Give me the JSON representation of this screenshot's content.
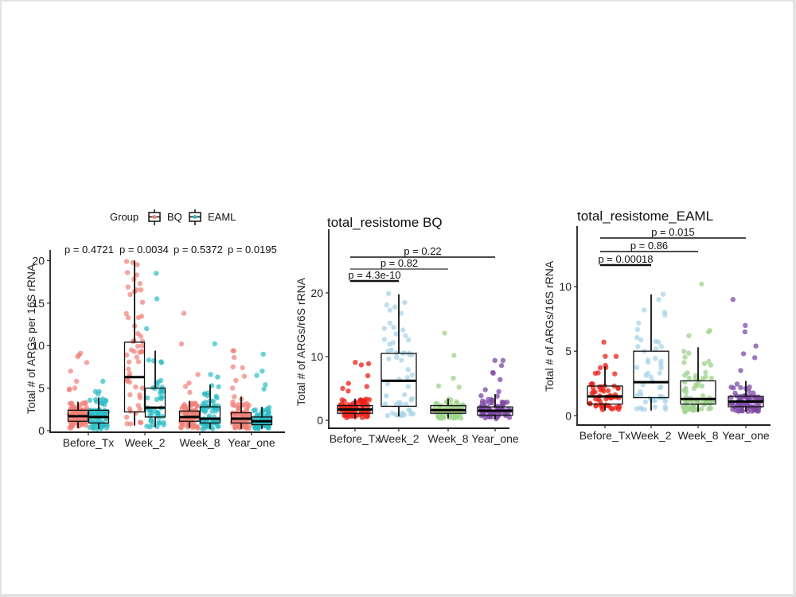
{
  "chart_data": [
    {
      "id": "left",
      "type": "box",
      "title": "",
      "xlabel": "",
      "ylabel": "Total # of ARGs per 16S  rRNA",
      "ylim": [
        0,
        20.5
      ],
      "yticks": [
        0,
        5,
        10,
        15,
        20
      ],
      "categories": [
        "Before_Tx",
        "Week_2",
        "Week_8",
        "Year_one"
      ],
      "legend": {
        "title": "Group",
        "position": "top",
        "entries": [
          {
            "name": "BQ",
            "color": "#f07f76"
          },
          {
            "name": "EAML",
            "color": "#2bbcc4"
          }
        ]
      },
      "annotations": [
        "p = 0.4721",
        "p = 0.0034",
        "p = 0.5372",
        "p = 0.0195"
      ],
      "series": [
        {
          "name": "BQ",
          "color": "#f07f76",
          "boxes": [
            {
              "q1": 1.1,
              "median": 1.7,
              "q3": 2.4,
              "whisker_low": 0.3,
              "whisker_high": 3.4,
              "n": 90,
              "outliers": [
                9.1,
                8.9,
                8.7,
                8.0,
                7.0,
                5.8,
                5.0,
                4.8,
                4.9
              ]
            },
            {
              "q1": 2.2,
              "median": 6.3,
              "q3": 10.4,
              "whisker_low": 0.6,
              "whisker_high": 20.0,
              "n": 55,
              "outliers": [
                19.9,
                18.6,
                18.3,
                17.8,
                17.3,
                13.3,
                12.3,
                11.4
              ]
            },
            {
              "q1": 1.1,
              "median": 1.6,
              "q3": 2.3,
              "whisker_low": 0.3,
              "whisker_high": 3.5,
              "n": 85,
              "outliers": [
                13.8,
                10.2,
                6.6,
                5.6,
                5.2,
                4.5
              ]
            },
            {
              "q1": 0.9,
              "median": 1.4,
              "q3": 2.1,
              "whisker_low": 0.2,
              "whisker_high": 4.0,
              "n": 85,
              "outliers": [
                9.4,
                9.4,
                8.6,
                7.5,
                7.4,
                6.4,
                5.9,
                5.0
              ]
            }
          ]
        },
        {
          "name": "EAML",
          "color": "#2bbcc4",
          "boxes": [
            {
              "q1": 0.9,
              "median": 1.6,
              "q3": 2.4,
              "whisker_low": 0.2,
              "whisker_high": 3.9,
              "n": 70,
              "outliers": [
                5.8,
                4.6,
                4.6,
                4.3
              ]
            },
            {
              "q1": 1.6,
              "median": 2.7,
              "q3": 5.0,
              "whisker_low": 0.4,
              "whisker_high": 9.4,
              "n": 50,
              "outliers": [
                18.5,
                15.5,
                12.0,
                8.3,
                8.0
              ]
            },
            {
              "q1": 0.9,
              "median": 1.4,
              "q3": 2.8,
              "whisker_low": 0.2,
              "whisker_high": 5.4,
              "n": 75,
              "outliers": [
                10.2,
                6.6,
                6.3
              ]
            },
            {
              "q1": 0.7,
              "median": 1.1,
              "q3": 1.6,
              "whisker_low": 0.2,
              "whisker_high": 2.8,
              "n": 90,
              "outliers": [
                9.0,
                7.0,
                6.5,
                5.4,
                4.9
              ]
            }
          ]
        }
      ]
    },
    {
      "id": "middle",
      "type": "box",
      "title": "total_resistome BQ",
      "xlabel": "",
      "ylabel": "Total # of ARGs/r6S rRNA",
      "ylim": [
        -1,
        29
      ],
      "yticks": [
        0,
        10,
        20
      ],
      "categories": [
        "Before_Tx",
        "Week_2",
        "Week_8",
        "Year_one"
      ],
      "colors": [
        "#e8231a",
        "#a9d4e8",
        "#9fd18c",
        "#7d4ba6"
      ],
      "comparisons": [
        {
          "groups": [
            "Before_Tx",
            "Week_2"
          ],
          "label": "p = 4.3e-10"
        },
        {
          "groups": [
            "Before_Tx",
            "Week_8"
          ],
          "label": "p = 0.82"
        },
        {
          "groups": [
            "Before_Tx",
            "Year_one"
          ],
          "label": "p = 0.22"
        }
      ],
      "boxes": [
        {
          "q1": 1.1,
          "median": 1.7,
          "q3": 2.3,
          "whisker_low": 0.3,
          "whisker_high": 3.4,
          "n": 90,
          "outliers": [
            9.1,
            8.9,
            8.7,
            7.0,
            5.8,
            5.0,
            5.3,
            4.6
          ]
        },
        {
          "q1": 2.2,
          "median": 6.2,
          "q3": 10.5,
          "whisker_low": 0.6,
          "whisker_high": 19.8,
          "n": 55,
          "outliers": [
            19.9,
            18.5,
            18.1,
            17.8,
            17.3,
            13.3,
            12.2
          ]
        },
        {
          "q1": 1.1,
          "median": 1.6,
          "q3": 2.3,
          "whisker_low": 0.3,
          "whisker_high": 3.4,
          "n": 85,
          "outliers": [
            13.7,
            10.2,
            6.6,
            5.4,
            5.2
          ]
        },
        {
          "q1": 0.8,
          "median": 1.5,
          "q3": 2.1,
          "whisker_low": 0.2,
          "whisker_high": 4.1,
          "n": 85,
          "outliers": [
            9.4,
            9.4,
            8.6,
            7.5,
            7.4,
            6.4,
            4.8,
            4.5
          ]
        }
      ]
    },
    {
      "id": "right",
      "type": "box",
      "title": "total_resistome_EAML",
      "xlabel": "",
      "ylabel": "Total # of ARGs/16S rRNA",
      "ylim": [
        -0.6,
        14.2
      ],
      "yticks": [
        0,
        5,
        10
      ],
      "categories": [
        "Before_Tx",
        "Week_2",
        "Week_8",
        "Year_one"
      ],
      "colors": [
        "#e8231a",
        "#a9d4e8",
        "#9fd18c",
        "#7d4ba6"
      ],
      "comparisons": [
        {
          "groups": [
            "Before_Tx",
            "Week_2"
          ],
          "label": "p = 0.00018"
        },
        {
          "groups": [
            "Before_Tx",
            "Week_8"
          ],
          "label": "p = 0.86"
        },
        {
          "groups": [
            "Before_Tx",
            "Year_one"
          ],
          "label": "p = 0.015"
        }
      ],
      "boxes": [
        {
          "q1": 0.9,
          "median": 1.5,
          "q3": 2.3,
          "whisker_low": 0.4,
          "whisker_high": 3.8,
          "n": 60,
          "outliers": [
            5.7,
            4.6,
            4.6,
            3.9
          ]
        },
        {
          "q1": 1.4,
          "median": 2.6,
          "q3": 5.0,
          "whisker_low": 0.4,
          "whisker_high": 9.4,
          "n": 50,
          "outliers": [
            9.4,
            8.2,
            8.0,
            7.8
          ]
        },
        {
          "q1": 0.9,
          "median": 1.3,
          "q3": 2.7,
          "whisker_low": 0.3,
          "whisker_high": 5.3,
          "n": 70,
          "outliers": [
            10.2,
            6.6,
            6.5,
            6.2
          ]
        },
        {
          "q1": 0.7,
          "median": 1.1,
          "q3": 1.5,
          "whisker_low": 0.3,
          "whisker_high": 2.7,
          "n": 85,
          "outliers": [
            9.0,
            7.0,
            6.5,
            5.4,
            4.8,
            4.5,
            3.5
          ]
        }
      ]
    }
  ]
}
